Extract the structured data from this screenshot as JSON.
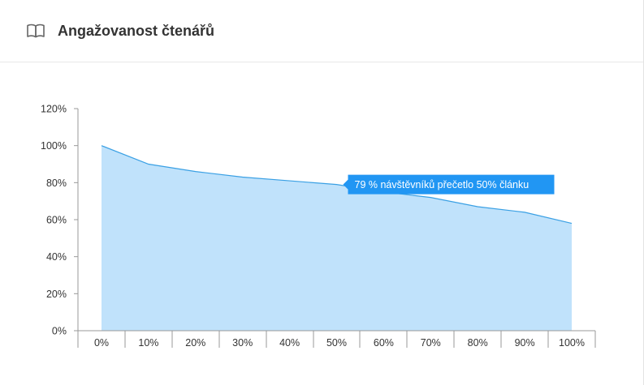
{
  "header": {
    "title": "Angažovanost čtenářů",
    "icon": "book-icon"
  },
  "chart_data": {
    "type": "area",
    "x": [
      "0%",
      "10%",
      "20%",
      "30%",
      "40%",
      "50%",
      "60%",
      "70%",
      "80%",
      "90%",
      "100%"
    ],
    "y": [
      100,
      90,
      86,
      83,
      81,
      79,
      75,
      72,
      67,
      64,
      58
    ],
    "ylim": [
      0,
      120
    ],
    "yticks": [
      "0%",
      "20%",
      "40%",
      "60%",
      "80%",
      "100%",
      "120%"
    ],
    "ytick_values": [
      0,
      20,
      40,
      60,
      80,
      100,
      120
    ],
    "grid": false,
    "fill_color": "#c0e2fb",
    "line_color": "#3aa0e4",
    "tooltip": {
      "text": "79 % návštěvníků přečetlo 50% článku",
      "point_index": 5,
      "color": "#2196f3"
    }
  }
}
